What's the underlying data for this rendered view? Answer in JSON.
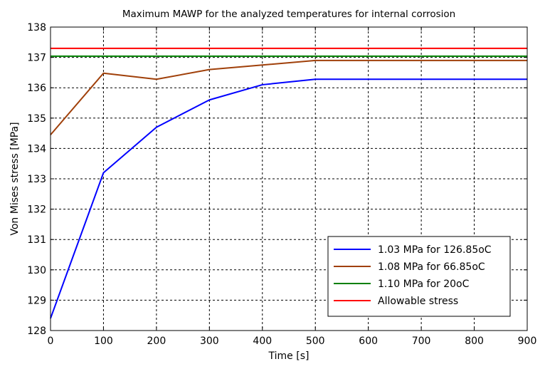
{
  "chart_data": {
    "type": "line",
    "title": "Maximum MAWP for the analyzed temperatures for internal corrosion",
    "xlabel": "Time [s]",
    "ylabel": "Von Mises stress [MPa]",
    "xlim": [
      0,
      900
    ],
    "ylim": [
      128,
      138
    ],
    "xticks": [
      0,
      100,
      200,
      300,
      400,
      500,
      600,
      700,
      800,
      900
    ],
    "yticks": [
      128,
      129,
      130,
      131,
      132,
      133,
      134,
      135,
      136,
      137,
      138
    ],
    "grid": true,
    "legend_position": "bottom-right",
    "series": [
      {
        "name": "1.03 MPa for 126.85oC",
        "color": "#0000ff",
        "x": [
          0,
          100,
          200,
          300,
          400,
          500,
          600,
          700,
          800,
          900
        ],
        "y": [
          128.4,
          133.2,
          134.7,
          135.6,
          136.1,
          136.28,
          136.28,
          136.28,
          136.28,
          136.28
        ]
      },
      {
        "name": "1.08 MPa for 66.85oC",
        "color": "#a0400a",
        "x": [
          0,
          100,
          200,
          300,
          400,
          500,
          600,
          700,
          800,
          900
        ],
        "y": [
          134.45,
          136.48,
          136.28,
          136.6,
          136.75,
          136.9,
          136.9,
          136.9,
          136.9,
          136.9
        ]
      },
      {
        "name": "1.10 MPa for 20oC",
        "color": "#008000",
        "x": [
          0,
          900
        ],
        "y": [
          137.04,
          137.04
        ]
      },
      {
        "name": "Allowable stress",
        "color": "#ff0000",
        "x": [
          0,
          900
        ],
        "y": [
          137.3,
          137.3
        ]
      }
    ]
  }
}
